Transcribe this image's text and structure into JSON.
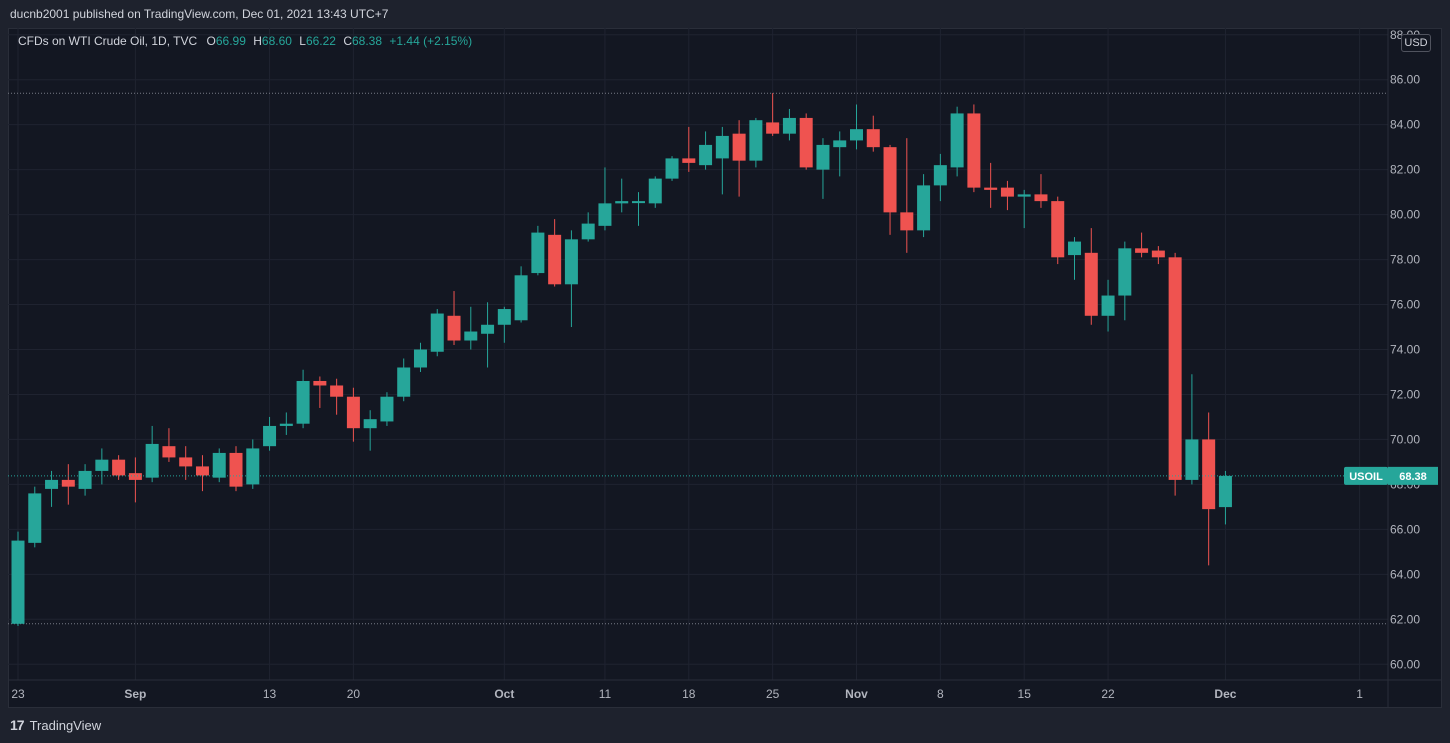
{
  "header": {
    "published": "ducnb2001 published on TradingView.com, Dec 01, 2021 13:43 UTC+7"
  },
  "legend": {
    "title": "CFDs on WTI Crude Oil, 1D, TVC",
    "o_label": "O",
    "o_value": "66.99",
    "h_label": "H",
    "h_value": "68.60",
    "l_label": "L",
    "l_value": "66.22",
    "c_label": "C",
    "c_value": "68.38",
    "change": "+1.44 (+2.15%)"
  },
  "currency": "USD",
  "price_label": {
    "symbol": "USOIL",
    "value": "68.38"
  },
  "footer": {
    "brand": "TradingView",
    "logo_icon": "tradingview-logo-icon"
  },
  "colors": {
    "up": "#26a69a",
    "down": "#ef5350",
    "background": "#131722",
    "grid": "#1f2330"
  },
  "chart_data": {
    "type": "candlestick",
    "symbol": "USOIL",
    "interval": "1D",
    "y_ticks": [
      "60.00",
      "62.00",
      "64.00",
      "66.00",
      "68.00",
      "70.00",
      "72.00",
      "74.00",
      "76.00",
      "78.00",
      "80.00",
      "82.00",
      "84.00",
      "86.00",
      "88.00"
    ],
    "ylim": [
      59.3,
      88.3
    ],
    "x_tick_labels": [
      {
        "label": "23",
        "index": 0
      },
      {
        "label": "Sep",
        "index": 7
      },
      {
        "label": "13",
        "index": 15
      },
      {
        "label": "20",
        "index": 20
      },
      {
        "label": "Oct",
        "index": 29
      },
      {
        "label": "11",
        "index": 35
      },
      {
        "label": "18",
        "index": 40
      },
      {
        "label": "25",
        "index": 45
      },
      {
        "label": "Nov",
        "index": 50
      },
      {
        "label": "8",
        "index": 55
      },
      {
        "label": "15",
        "index": 60
      },
      {
        "label": "22",
        "index": 65
      },
      {
        "label": "Dec",
        "index": 72
      },
      {
        "label": "1",
        "index": 80
      }
    ],
    "hlines": [
      85.4,
      61.8
    ],
    "last_price": 68.38,
    "candles": [
      {
        "o": 61.8,
        "h": 65.9,
        "l": 61.7,
        "c": 65.5
      },
      {
        "o": 65.4,
        "h": 67.9,
        "l": 65.2,
        "c": 67.6
      },
      {
        "o": 67.8,
        "h": 68.6,
        "l": 67.0,
        "c": 68.2
      },
      {
        "o": 68.2,
        "h": 68.9,
        "l": 67.1,
        "c": 67.9
      },
      {
        "o": 67.8,
        "h": 68.9,
        "l": 67.5,
        "c": 68.6
      },
      {
        "o": 68.6,
        "h": 69.6,
        "l": 68.0,
        "c": 69.1
      },
      {
        "o": 69.1,
        "h": 69.3,
        "l": 68.2,
        "c": 68.4
      },
      {
        "o": 68.5,
        "h": 69.2,
        "l": 67.2,
        "c": 68.2
      },
      {
        "o": 68.3,
        "h": 70.6,
        "l": 68.1,
        "c": 69.8
      },
      {
        "o": 69.7,
        "h": 70.5,
        "l": 69.0,
        "c": 69.2
      },
      {
        "o": 69.2,
        "h": 69.7,
        "l": 68.2,
        "c": 68.8
      },
      {
        "o": 68.8,
        "h": 69.3,
        "l": 67.7,
        "c": 68.4
      },
      {
        "o": 68.3,
        "h": 69.6,
        "l": 68.1,
        "c": 69.4
      },
      {
        "o": 69.4,
        "h": 69.7,
        "l": 67.7,
        "c": 67.9
      },
      {
        "o": 68.0,
        "h": 70.0,
        "l": 67.8,
        "c": 69.6
      },
      {
        "o": 69.7,
        "h": 71.0,
        "l": 69.5,
        "c": 70.6
      },
      {
        "o": 70.6,
        "h": 71.2,
        "l": 70.2,
        "c": 70.7
      },
      {
        "o": 70.7,
        "h": 73.1,
        "l": 70.5,
        "c": 72.6
      },
      {
        "o": 72.6,
        "h": 72.8,
        "l": 71.4,
        "c": 72.4
      },
      {
        "o": 72.4,
        "h": 72.7,
        "l": 71.1,
        "c": 71.9
      },
      {
        "o": 71.9,
        "h": 72.3,
        "l": 69.9,
        "c": 70.5
      },
      {
        "o": 70.5,
        "h": 71.3,
        "l": 69.5,
        "c": 70.9
      },
      {
        "o": 70.8,
        "h": 72.1,
        "l": 70.6,
        "c": 71.9
      },
      {
        "o": 71.9,
        "h": 73.6,
        "l": 71.7,
        "c": 73.2
      },
      {
        "o": 73.2,
        "h": 74.3,
        "l": 73.0,
        "c": 74.0
      },
      {
        "o": 73.9,
        "h": 75.8,
        "l": 73.7,
        "c": 75.6
      },
      {
        "o": 75.5,
        "h": 76.6,
        "l": 74.2,
        "c": 74.4
      },
      {
        "o": 74.4,
        "h": 75.9,
        "l": 74.0,
        "c": 74.8
      },
      {
        "o": 74.7,
        "h": 76.1,
        "l": 73.2,
        "c": 75.1
      },
      {
        "o": 75.1,
        "h": 75.9,
        "l": 74.3,
        "c": 75.8
      },
      {
        "o": 75.3,
        "h": 77.7,
        "l": 75.2,
        "c": 77.3
      },
      {
        "o": 77.4,
        "h": 79.5,
        "l": 77.3,
        "c": 79.2
      },
      {
        "o": 79.1,
        "h": 79.8,
        "l": 76.8,
        "c": 76.9
      },
      {
        "o": 76.9,
        "h": 79.3,
        "l": 75.0,
        "c": 78.9
      },
      {
        "o": 78.9,
        "h": 80.1,
        "l": 78.8,
        "c": 79.6
      },
      {
        "o": 79.5,
        "h": 82.1,
        "l": 79.3,
        "c": 80.5
      },
      {
        "o": 80.5,
        "h": 81.6,
        "l": 80.1,
        "c": 80.6
      },
      {
        "o": 80.6,
        "h": 81.0,
        "l": 79.5,
        "c": 80.6
      },
      {
        "o": 80.5,
        "h": 81.7,
        "l": 80.3,
        "c": 81.6
      },
      {
        "o": 81.6,
        "h": 82.6,
        "l": 81.5,
        "c": 82.5
      },
      {
        "o": 82.5,
        "h": 83.9,
        "l": 81.9,
        "c": 82.3
      },
      {
        "o": 82.2,
        "h": 83.7,
        "l": 82.0,
        "c": 83.1
      },
      {
        "o": 82.5,
        "h": 83.9,
        "l": 80.9,
        "c": 83.5
      },
      {
        "o": 83.6,
        "h": 84.2,
        "l": 80.8,
        "c": 82.4
      },
      {
        "o": 82.4,
        "h": 84.3,
        "l": 82.1,
        "c": 84.2
      },
      {
        "o": 84.1,
        "h": 85.4,
        "l": 83.5,
        "c": 83.6
      },
      {
        "o": 83.6,
        "h": 84.7,
        "l": 83.3,
        "c": 84.3
      },
      {
        "o": 84.3,
        "h": 84.5,
        "l": 82.0,
        "c": 82.1
      },
      {
        "o": 82.0,
        "h": 83.4,
        "l": 80.7,
        "c": 83.1
      },
      {
        "o": 83.0,
        "h": 83.7,
        "l": 81.7,
        "c": 83.3
      },
      {
        "o": 83.3,
        "h": 84.9,
        "l": 82.9,
        "c": 83.8
      },
      {
        "o": 83.8,
        "h": 84.4,
        "l": 82.8,
        "c": 83.0
      },
      {
        "o": 83.0,
        "h": 83.1,
        "l": 79.1,
        "c": 80.1
      },
      {
        "o": 80.1,
        "h": 83.4,
        "l": 78.3,
        "c": 79.3
      },
      {
        "o": 79.3,
        "h": 81.8,
        "l": 79.0,
        "c": 81.3
      },
      {
        "o": 81.3,
        "h": 82.7,
        "l": 80.6,
        "c": 82.2
      },
      {
        "o": 82.1,
        "h": 84.8,
        "l": 81.7,
        "c": 84.5
      },
      {
        "o": 84.5,
        "h": 84.9,
        "l": 81.0,
        "c": 81.2
      },
      {
        "o": 81.2,
        "h": 82.3,
        "l": 80.3,
        "c": 81.1
      },
      {
        "o": 81.2,
        "h": 81.5,
        "l": 80.2,
        "c": 80.8
      },
      {
        "o": 80.8,
        "h": 81.1,
        "l": 79.4,
        "c": 80.9
      },
      {
        "o": 80.9,
        "h": 81.8,
        "l": 80.3,
        "c": 80.6
      },
      {
        "o": 80.6,
        "h": 80.8,
        "l": 77.8,
        "c": 78.1
      },
      {
        "o": 78.2,
        "h": 79.0,
        "l": 77.1,
        "c": 78.8
      },
      {
        "o": 78.3,
        "h": 79.4,
        "l": 75.1,
        "c": 75.5
      },
      {
        "o": 75.5,
        "h": 77.1,
        "l": 74.8,
        "c": 76.4
      },
      {
        "o": 76.4,
        "h": 78.8,
        "l": 75.3,
        "c": 78.5
      },
      {
        "o": 78.5,
        "h": 79.2,
        "l": 78.1,
        "c": 78.3
      },
      {
        "o": 78.4,
        "h": 78.6,
        "l": 77.8,
        "c": 78.1
      },
      {
        "o": 78.1,
        "h": 78.3,
        "l": 67.5,
        "c": 68.2
      },
      {
        "o": 68.2,
        "h": 72.9,
        "l": 68.0,
        "c": 70.0
      },
      {
        "o": 70.0,
        "h": 71.2,
        "l": 64.4,
        "c": 66.9
      },
      {
        "o": 66.99,
        "h": 68.6,
        "l": 66.22,
        "c": 68.38
      }
    ]
  }
}
